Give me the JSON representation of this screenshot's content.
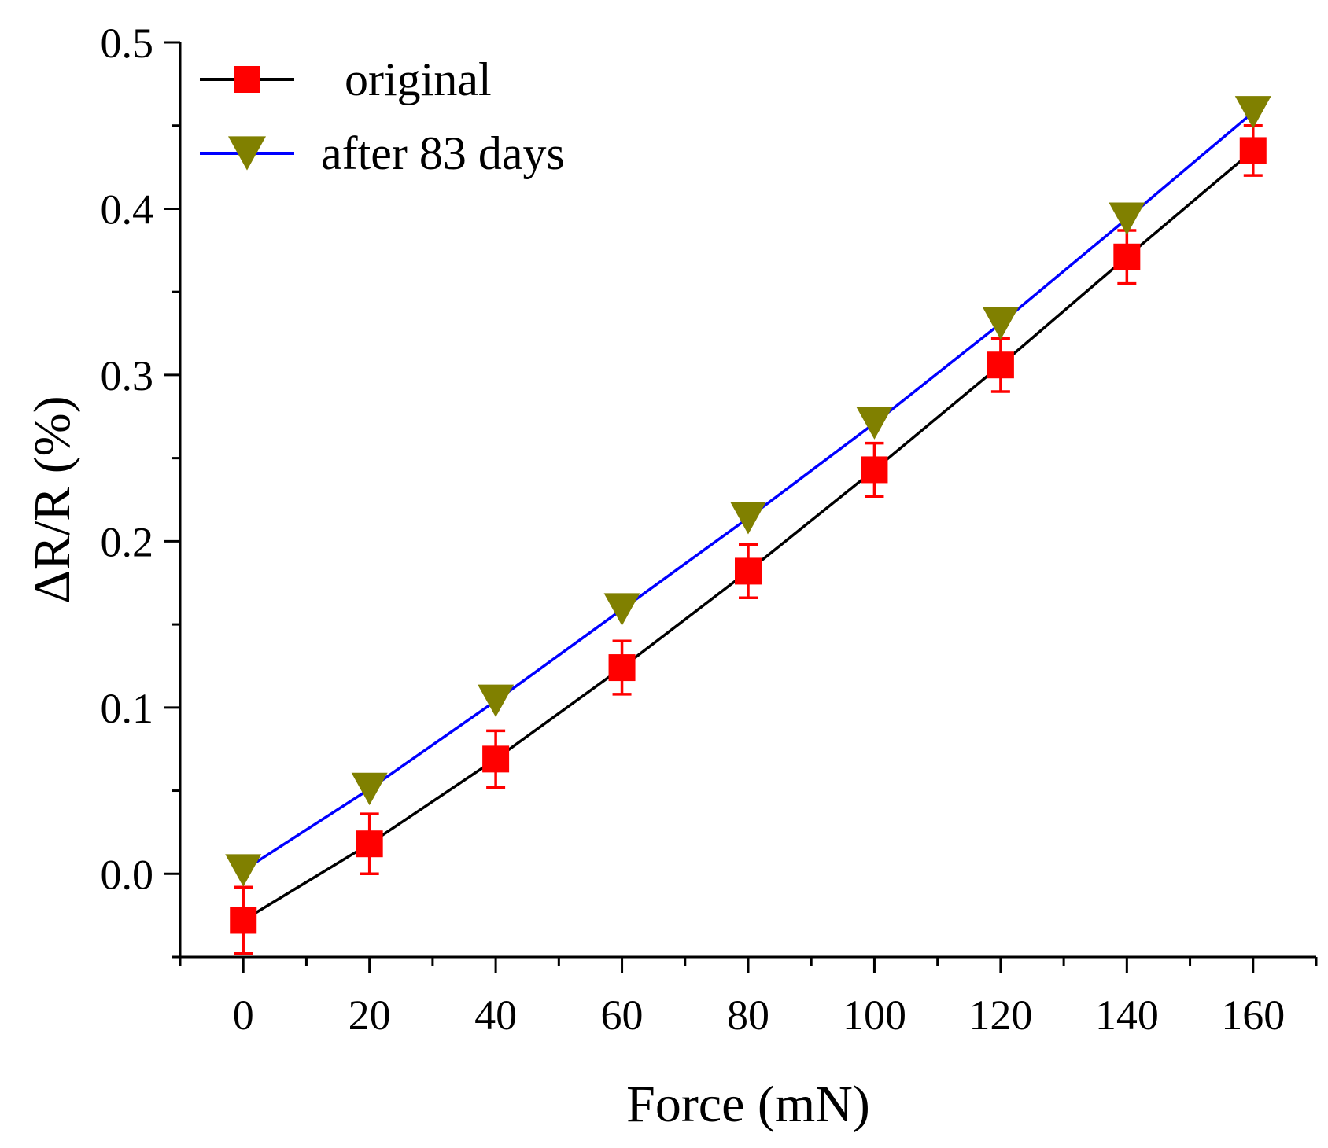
{
  "chart_data": {
    "type": "line",
    "title": "",
    "xlabel": "Force (mN)",
    "ylabel": "ΔR/R (%)",
    "xlim": [
      -10,
      170
    ],
    "ylim": [
      -0.05,
      0.5
    ],
    "x": [
      0,
      20,
      40,
      60,
      80,
      100,
      120,
      140,
      160
    ],
    "xticks": [
      0,
      20,
      40,
      60,
      80,
      100,
      120,
      140,
      160
    ],
    "xtick_labels": [
      "0",
      "20",
      "40",
      "60",
      "80",
      "100",
      "120",
      "140",
      "160"
    ],
    "yticks": [
      0.0,
      0.1,
      0.2,
      0.3,
      0.4,
      0.5
    ],
    "ytick_labels": [
      "0.0",
      "0.1",
      "0.2",
      "0.3",
      "0.4",
      "0.5"
    ],
    "grid": false,
    "legend_position": "top-left",
    "series": [
      {
        "name": "original",
        "line_color": "#000000",
        "marker": "square",
        "marker_color": "#ff0000",
        "values": [
          -0.028,
          0.018,
          0.069,
          0.124,
          0.182,
          0.243,
          0.306,
          0.371,
          0.435
        ],
        "error": [
          0.02,
          0.018,
          0.017,
          0.016,
          0.016,
          0.016,
          0.016,
          0.016,
          0.015
        ],
        "error_color": "#ff0000"
      },
      {
        "name": "after 83 days",
        "line_color": "#0000ff",
        "marker": "triangle-down",
        "marker_color": "#808000",
        "values": [
          0.002,
          0.051,
          0.104,
          0.159,
          0.214,
          0.271,
          0.331,
          0.394,
          0.458
        ]
      }
    ]
  }
}
